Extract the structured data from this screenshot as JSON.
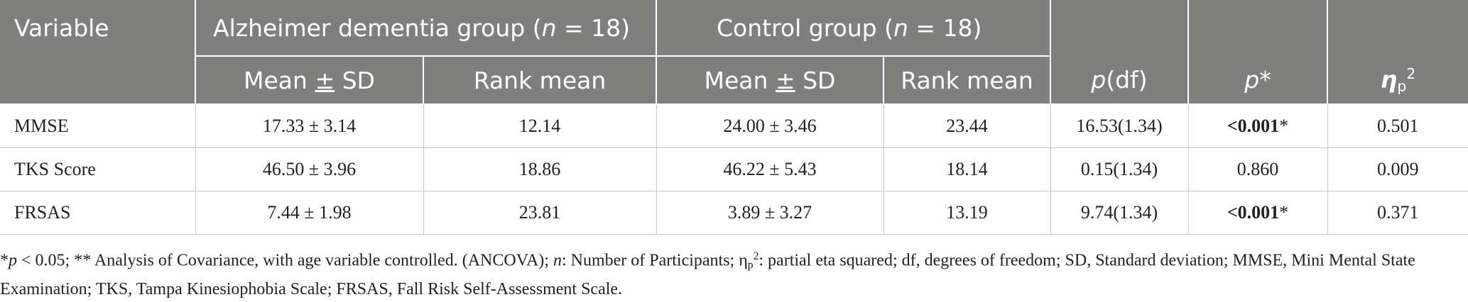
{
  "table": {
    "header": {
      "variable": "Variable",
      "group_ad_prefix": "Alzheimer dementia group (",
      "group_ad_n": "n",
      "group_ad_suffix": " = 18)",
      "group_ctrl_prefix": "Control group (",
      "group_ctrl_n": "n",
      "group_ctrl_suffix": " = 18)",
      "mean_pre": "Mean ",
      "mean_pm": "±",
      "mean_post": " SD",
      "rank_mean": "Rank mean",
      "p_df_p": "p",
      "p_df_rest": "(df)",
      "p_star_p": "p",
      "p_star_star": "*",
      "eta": "η",
      "eta_sub": "p",
      "eta_sup": "2"
    },
    "rows": [
      {
        "variable": "MMSE",
        "ad_mean": "17.33 ± 3.14",
        "ad_rank": "12.14",
        "ctrl_mean": "24.00 ± 3.46",
        "ctrl_rank": "23.44",
        "p_df": "16.53(1.34)",
        "p_star_value": "<0.001",
        "p_star_mark": "*",
        "eta": "0.501"
      },
      {
        "variable": "TKS Score",
        "ad_mean": "46.50 ± 3.96",
        "ad_rank": "18.86",
        "ctrl_mean": "46.22 ± 5.43",
        "ctrl_rank": "18.14",
        "p_df": "0.15(1.34)",
        "p_star_value": "0.860",
        "p_star_mark": "",
        "eta": "0.009"
      },
      {
        "variable": "FRSAS",
        "ad_mean": "7.44 ± 1.98",
        "ad_rank": "23.81",
        "ctrl_mean": "3.89 ± 3.27",
        "ctrl_rank": "13.19",
        "p_df": "9.74(1.34)",
        "p_star_value": "<0.001",
        "p_star_mark": "*",
        "eta": "0.371"
      }
    ]
  },
  "footnote": {
    "star": "*",
    "p": "p",
    "part1": " < 0.05; ** Analysis of Covariance, with age variable controlled. (ANCOVA); ",
    "n": "n",
    "part2": ": Number of Participants; η",
    "eta_sub": "p",
    "eta_sup": "2",
    "part3": ": partial eta squared; df, degrees of freedom; SD, Standard deviation; MMSE, Mini Mental State Examination; TKS, Tampa Kinesiophobia Scale; FRSAS, Fall Risk Self-Assessment Scale."
  },
  "colors": {
    "header_bg": "#7f7f7e",
    "header_text": "#ffffff",
    "body_text": "#222222",
    "grid_line": "#c9c9c9"
  }
}
